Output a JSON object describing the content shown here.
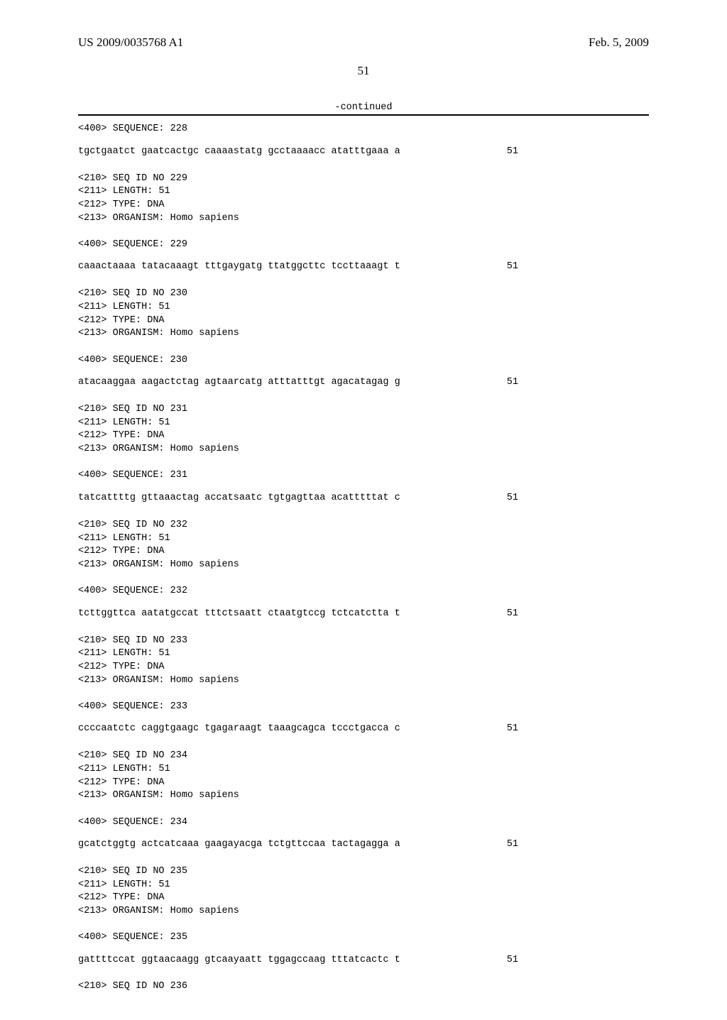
{
  "header": {
    "pub_number": "US 2009/0035768 A1",
    "pub_date": "Feb. 5, 2009"
  },
  "page_number": "51",
  "continued_label": "-continued",
  "sequences": [
    {
      "pre_header": "<400> SEQUENCE: 228",
      "seq_text": "tgctgaatct gaatcactgc caaaastatg gcctaaaacc atatttgaaa a",
      "seq_len": "51",
      "meta": "<210> SEQ ID NO 229\n<211> LENGTH: 51\n<212> TYPE: DNA\n<213> ORGANISM: Homo sapiens\n\n<400> SEQUENCE: 229",
      "seq_text2": "caaactaaaa tatacaaagt tttgaygatg ttatggcttc tccttaaagt t",
      "seq_len2": "51"
    },
    {
      "meta": "<210> SEQ ID NO 230\n<211> LENGTH: 51\n<212> TYPE: DNA\n<213> ORGANISM: Homo sapiens\n\n<400> SEQUENCE: 230",
      "seq_text": "atacaaggaa aagactctag agtaarcatg atttatttgt agacatagag g",
      "seq_len": "51"
    },
    {
      "meta": "<210> SEQ ID NO 231\n<211> LENGTH: 51\n<212> TYPE: DNA\n<213> ORGANISM: Homo sapiens\n\n<400> SEQUENCE: 231",
      "seq_text": "tatcattttg gttaaactag accatsaatc tgtgagttaa acatttttat c",
      "seq_len": "51"
    },
    {
      "meta": "<210> SEQ ID NO 232\n<211> LENGTH: 51\n<212> TYPE: DNA\n<213> ORGANISM: Homo sapiens\n\n<400> SEQUENCE: 232",
      "seq_text": "tcttggttca aatatgccat tttctsaatt ctaatgtccg tctcatctta t",
      "seq_len": "51"
    },
    {
      "meta": "<210> SEQ ID NO 233\n<211> LENGTH: 51\n<212> TYPE: DNA\n<213> ORGANISM: Homo sapiens\n\n<400> SEQUENCE: 233",
      "seq_text": "ccccaatctc caggtgaagc tgagaraagt taaagcagca tccctgacca c",
      "seq_len": "51"
    },
    {
      "meta": "<210> SEQ ID NO 234\n<211> LENGTH: 51\n<212> TYPE: DNA\n<213> ORGANISM: Homo sapiens\n\n<400> SEQUENCE: 234",
      "seq_text": "gcatctggtg actcatcaaa gaagayacga tctgttccaa tactagagga a",
      "seq_len": "51"
    },
    {
      "meta": "<210> SEQ ID NO 235\n<211> LENGTH: 51\n<212> TYPE: DNA\n<213> ORGANISM: Homo sapiens\n\n<400> SEQUENCE: 235",
      "seq_text": "gattttccat ggtaacaagg gtcaayaatt tggagccaag tttatcactc t",
      "seq_len": "51"
    }
  ],
  "final": "<210> SEQ ID NO 236"
}
